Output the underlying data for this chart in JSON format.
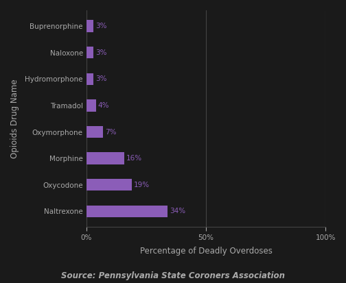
{
  "categories": [
    "Naltrexone",
    "Oxycodone",
    "Morphine",
    "Oxymorphone",
    "Tramadol",
    "Hydromorphone",
    "Naloxone",
    "Buprenorphine"
  ],
  "values": [
    34,
    19,
    16,
    7,
    4,
    3,
    3,
    3
  ],
  "bar_labels": [
    "34%",
    "19%",
    "16%",
    "7%",
    "4%",
    "3%",
    "3%",
    "3%"
  ],
  "bar_color": "#8B5DB8",
  "xlabel": "Percentage of Deadly Overdoses",
  "ylabel": "Opioids Drug Name",
  "source_text": "Source: Pennsylvania State Coroners Association",
  "xlim": [
    0,
    100
  ],
  "xtick_positions": [
    0,
    50,
    100
  ],
  "xticklabels": [
    "0%",
    "50%",
    "100%"
  ],
  "background_color": "#1a1a1a",
  "grid_color": "#444444",
  "text_color": "#aaaaaa",
  "bar_height": 0.45,
  "label_fontsize": 7.5,
  "axis_label_fontsize": 8.5,
  "tick_fontsize": 7.5,
  "source_fontsize": 8.5
}
